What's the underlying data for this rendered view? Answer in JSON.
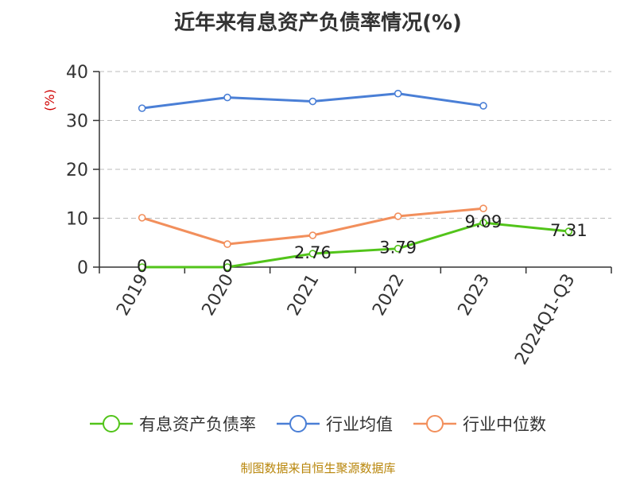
{
  "title": "近年来有息资产负债率情况(%)",
  "source": "制图数据来自恒生聚源数据库",
  "chart_data": {
    "type": "line",
    "title": "近年来有息资产负债率情况(%)",
    "ylabel": "(%)",
    "xlabel": "",
    "categories": [
      "2019",
      "2020",
      "2021",
      "2022",
      "2023",
      "2024Q1-Q3"
    ],
    "ylim": [
      0,
      40
    ],
    "yticks": [
      0,
      10,
      20,
      30,
      40
    ],
    "grid": true,
    "legend_position": "bottom",
    "series": [
      {
        "name": "有息资产负债率",
        "color": "#52c41a",
        "values": [
          0,
          0,
          2.76,
          3.79,
          9.09,
          7.31
        ],
        "labels": [
          "0",
          "0",
          "2.76",
          "3.79",
          "9.09",
          "7.31"
        ]
      },
      {
        "name": "行业均值",
        "color": "#4a7fd6",
        "values": [
          32.5,
          34.7,
          33.9,
          35.5,
          33.0,
          null
        ]
      },
      {
        "name": "行业中位数",
        "color": "#f28f5c",
        "values": [
          10.1,
          4.7,
          6.5,
          10.4,
          12.0,
          null
        ]
      }
    ]
  }
}
